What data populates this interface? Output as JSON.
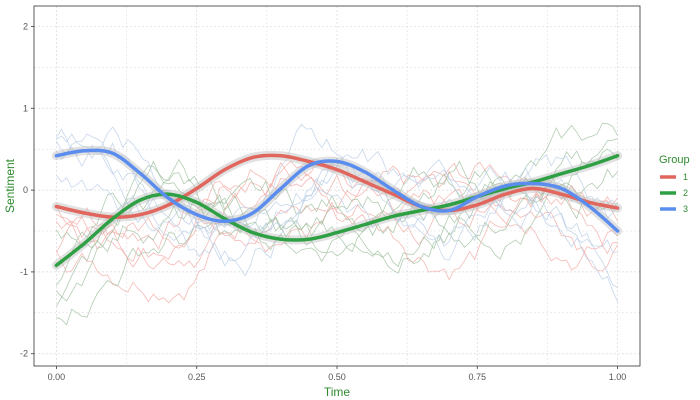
{
  "chart_data": {
    "type": "line",
    "title": "",
    "xlabel": "Time",
    "ylabel": "Sentiment",
    "xlim": [
      -0.04,
      1.04
    ],
    "ylim": [
      -2.15,
      2.25
    ],
    "x_ticks": [
      0,
      0.25,
      0.5,
      0.75,
      1
    ],
    "x_tick_labels": [
      "0.00",
      "0.25",
      "0.50",
      "0.75",
      "1.00"
    ],
    "y_ticks": [
      -2,
      -1,
      0,
      1,
      2
    ],
    "y_tick_labels": [
      "-2",
      "-1",
      "0",
      "1",
      "2"
    ],
    "grid": true,
    "legend": {
      "title": "Group",
      "placement": "right"
    },
    "series": [
      {
        "name": "1",
        "color": "#e0665e",
        "x": [
          0,
          0.05,
          0.1,
          0.15,
          0.2,
          0.25,
          0.3,
          0.35,
          0.4,
          0.45,
          0.5,
          0.55,
          0.6,
          0.65,
          0.7,
          0.75,
          0.8,
          0.85,
          0.9,
          0.95,
          1
        ],
        "values": [
          -0.2,
          -0.28,
          -0.33,
          -0.3,
          -0.18,
          0.02,
          0.25,
          0.4,
          0.42,
          0.35,
          0.25,
          0.1,
          -0.05,
          -0.2,
          -0.25,
          -0.18,
          -0.05,
          0.02,
          -0.05,
          -0.15,
          -0.22
        ]
      },
      {
        "name": "2",
        "color": "#2ea043",
        "x": [
          0,
          0.05,
          0.1,
          0.15,
          0.2,
          0.25,
          0.3,
          0.35,
          0.4,
          0.45,
          0.5,
          0.55,
          0.6,
          0.65,
          0.7,
          0.75,
          0.8,
          0.85,
          0.9,
          0.95,
          1
        ],
        "values": [
          -0.92,
          -0.65,
          -0.35,
          -0.12,
          -0.05,
          -0.15,
          -0.35,
          -0.52,
          -0.6,
          -0.6,
          -0.52,
          -0.42,
          -0.32,
          -0.25,
          -0.18,
          -0.08,
          0.02,
          0.1,
          0.2,
          0.3,
          0.42
        ]
      },
      {
        "name": "3",
        "color": "#5b8def",
        "x": [
          0,
          0.05,
          0.1,
          0.15,
          0.2,
          0.25,
          0.3,
          0.35,
          0.4,
          0.45,
          0.5,
          0.55,
          0.6,
          0.65,
          0.7,
          0.75,
          0.8,
          0.85,
          0.9,
          0.95,
          1
        ],
        "values": [
          0.42,
          0.48,
          0.45,
          0.2,
          -0.1,
          -0.3,
          -0.38,
          -0.28,
          0.02,
          0.3,
          0.35,
          0.22,
          0.0,
          -0.2,
          -0.25,
          -0.08,
          0.05,
          0.08,
          0.02,
          -0.2,
          -0.5
        ]
      }
    ]
  }
}
